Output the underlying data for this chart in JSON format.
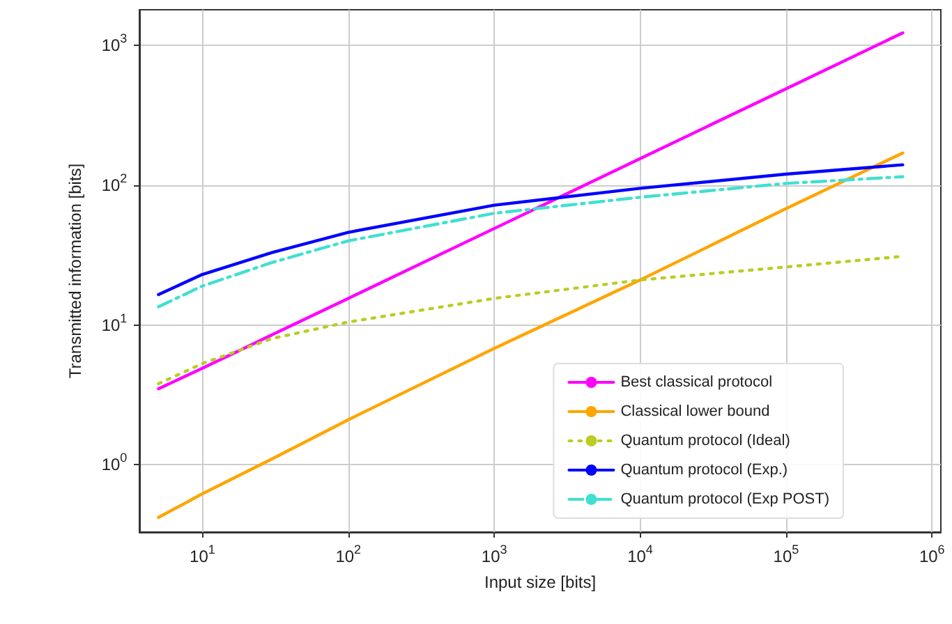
{
  "chart_data": {
    "type": "line",
    "xlabel": "Input size [bits]",
    "ylabel": "Transmitted information [bits]",
    "log": "xy",
    "grid": true,
    "legend": "bottom right",
    "marker": "none",
    "xlim": [
      3.7,
      1150000
    ],
    "ylim": [
      0.33,
      1800
    ],
    "xticks": [
      {
        "value": 10,
        "label": "10$^{1}$"
      },
      {
        "value": 100,
        "label": "10$^{2}$"
      },
      {
        "value": 1000,
        "label": "10$^{3}$"
      },
      {
        "value": 10000,
        "label": "10$^{4}$"
      },
      {
        "value": 100000,
        "label": "10$^{5}$"
      },
      {
        "value": 1000000,
        "label": "10$^{6}$"
      }
    ],
    "yticks": [
      {
        "value": 1,
        "label": "10$^{0}$"
      },
      {
        "value": 10,
        "label": "10$^{1}$"
      },
      {
        "value": 100,
        "label": "10$^{2}$"
      },
      {
        "value": 1000,
        "label": "10$^{3}$"
      }
    ],
    "x": [
      5,
      10,
      30,
      100,
      1000,
      10000,
      100000,
      630000
    ],
    "series": [
      {
        "name": "Best classical protocol",
        "color": "#ff00ff",
        "line_style": "solid",
        "values": [
          3.5,
          4.9,
          8.5,
          15.5,
          49,
          155,
          490,
          1230
        ]
      },
      {
        "name": "Classical lower bound",
        "color": "#ffa500",
        "line_style": "solid",
        "values": [
          0.42,
          0.62,
          1.1,
          2.1,
          6.8,
          21,
          68,
          170
        ]
      },
      {
        "name": "Quantum protocol (Ideal)",
        "color": "#bbcc22",
        "line_style": "dotted",
        "values": [
          3.8,
          5.3,
          8,
          10.5,
          15.5,
          21,
          26,
          31
        ]
      },
      {
        "name": "Quantum protocol (Exp.)",
        "color": "#0000ff",
        "line_style": "solid",
        "values": [
          16.5,
          23,
          33,
          46,
          72,
          95,
          120,
          140
        ]
      },
      {
        "name": "Quantum protocol (Exp POST)",
        "color": "#40e0d0",
        "line_style": "dashdot",
        "values": [
          13.5,
          19,
          28,
          40,
          63,
          82,
          103,
          115
        ]
      }
    ]
  }
}
